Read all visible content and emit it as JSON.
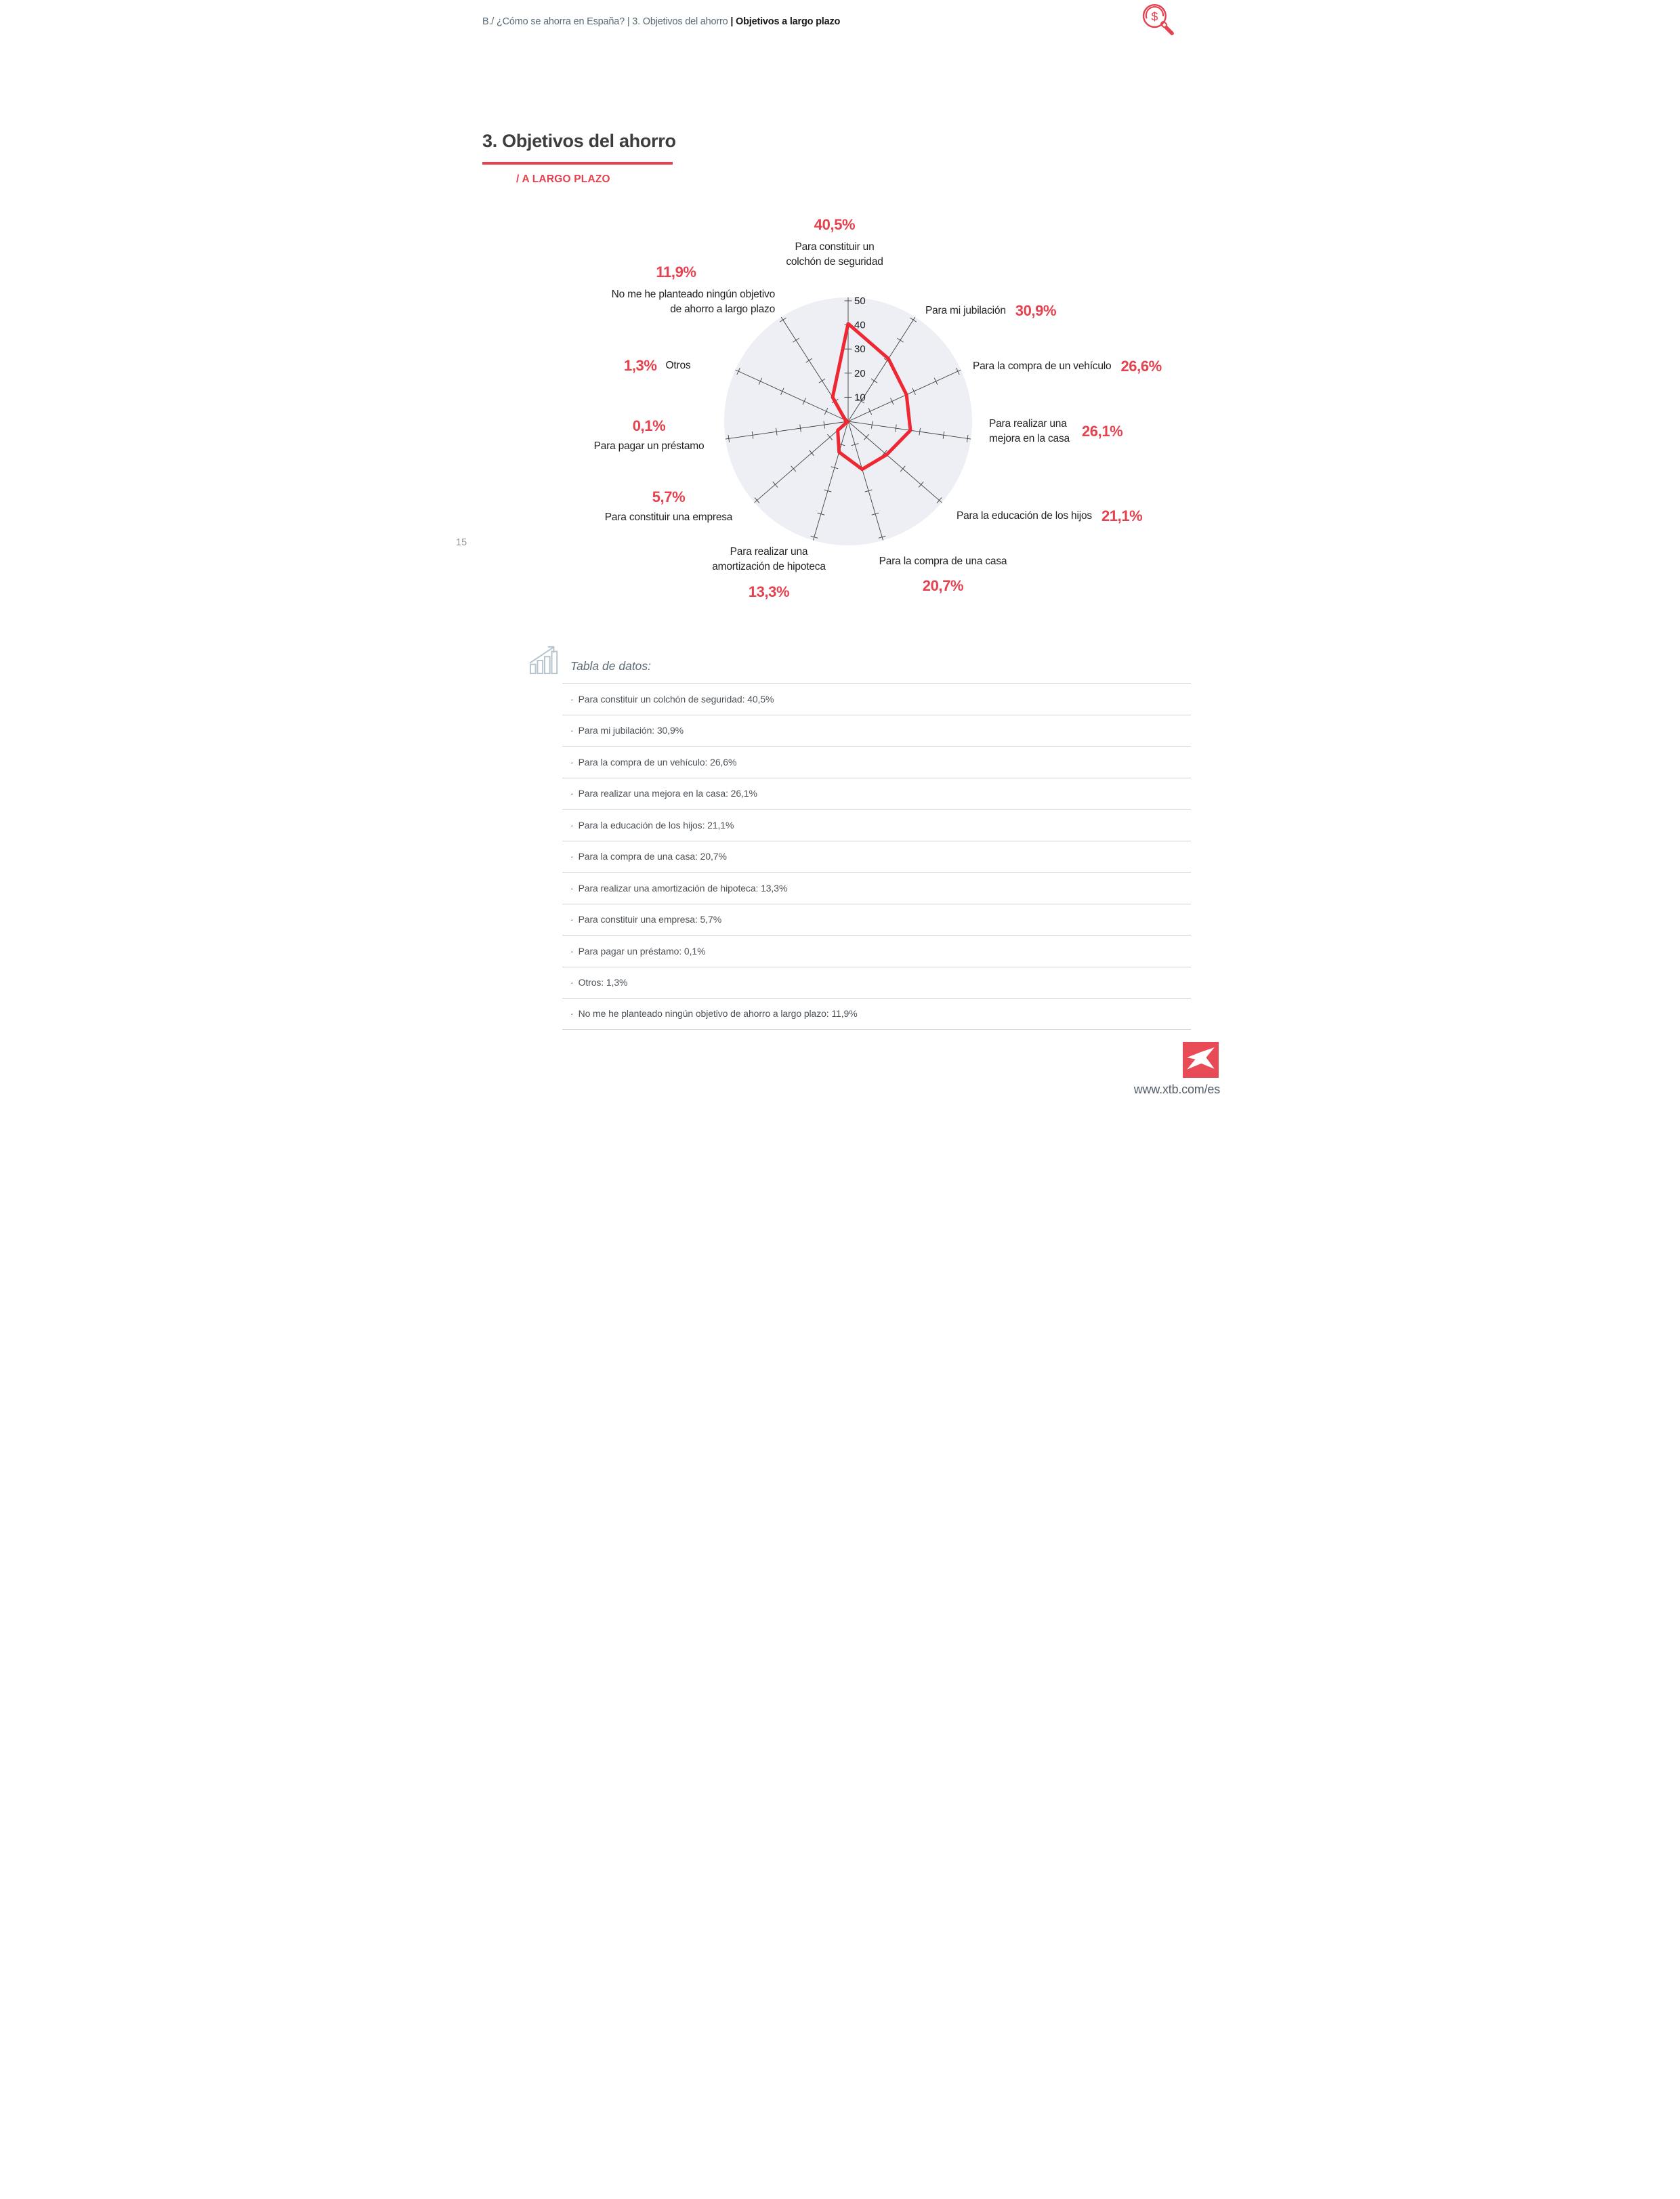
{
  "breadcrumb": {
    "part1": "B./ ¿Cómo se ahorra en España? |",
    "part2": " 3. Objetivos del ahorro ",
    "part3": "| Objetivos a largo plazo"
  },
  "header_icon": "dollar-magnifier",
  "title": "3. Objetivos del ahorro",
  "subtitle": "/ A LARGO PLAZO",
  "page_number": "15",
  "chart_data": {
    "type": "radar",
    "title": "Objetivos del ahorro a largo plazo",
    "categories": [
      "Para constituir un colchón de seguridad",
      "Para mi jubilación",
      "Para la compra de un vehículo",
      "Para realizar una mejora en la casa",
      "Para la educación de los hijos",
      "Para la compra de una casa",
      "Para realizar una amortización de hipoteca",
      "Para constituir una empresa",
      "Para pagar un préstamo",
      "Otros",
      "No me he planteado ningún objetivo de ahorro a largo plazo"
    ],
    "values": [
      40.5,
      30.9,
      26.6,
      26.1,
      21.1,
      20.7,
      13.3,
      5.7,
      0.1,
      1.3,
      11.9
    ],
    "ylim": [
      0,
      50
    ],
    "axis_ticks": [
      "10",
      "20",
      "30",
      "40",
      "50"
    ],
    "grid": "radial-11-axes",
    "legend": "none",
    "labels": [
      {
        "pct": "40,5%",
        "name": "Para constituir un\ncolchón de seguridad"
      },
      {
        "pct": "30,9%",
        "name": "Para mi jubilación"
      },
      {
        "pct": "26,6%",
        "name": "Para la compra de un vehículo"
      },
      {
        "pct": "26,1%",
        "name": "Para realizar una\nmejora en la casa"
      },
      {
        "pct": "21,1%",
        "name": "Para la educación de los hijos"
      },
      {
        "pct": "20,7%",
        "name": "Para la compra de una casa"
      },
      {
        "pct": "13,3%",
        "name": "Para realizar una\namortización de hipoteca"
      },
      {
        "pct": "5,7%",
        "name": "Para constituir una empresa"
      },
      {
        "pct": "0,1%",
        "name": "Para pagar un préstamo"
      },
      {
        "pct": "1,3%",
        "name": "Otros"
      },
      {
        "pct": "11,9%",
        "name": "No me he planteado ningún objetivo\nde ahorro a largo plazo"
      }
    ]
  },
  "table": {
    "heading": "Tabla de datos:",
    "bullet": "·",
    "rows": [
      "Para constituir un colchón de seguridad: 40,5%",
      "Para mi jubilación: 30,9%",
      "Para la compra de un vehículo: 26,6%",
      "Para realizar una mejora en la casa: 26,1%",
      "Para la educación de los hijos: 21,1%",
      "Para la compra de una casa: 20,7%",
      "Para realizar una amortización de hipoteca: 13,3%",
      "Para constituir una empresa: 5,7%",
      "Para pagar un préstamo: 0,1%",
      "Otros: 1,3%",
      "No me he planteado ningún objetivo de ahorro a largo plazo: 11,9%"
    ]
  },
  "footer": {
    "url": "www.xtb.com/es",
    "logo": "XTB"
  },
  "colors": {
    "accent_red": "#e5414e",
    "polygon_red": "#ef2733",
    "logo_red": "#e84a56",
    "circle_fill": "#edeff4",
    "axis_line": "#3f3f3f",
    "tick_label": "#1c1c1c"
  }
}
